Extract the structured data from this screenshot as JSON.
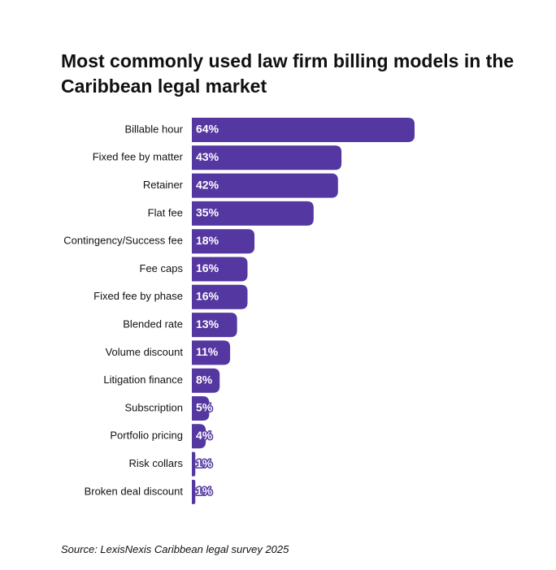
{
  "chart_data": {
    "type": "bar",
    "orientation": "horizontal",
    "title": "Most commonly used law firm billing models in the Caribbean legal market",
    "source": "Source: LexisNexis Caribbean legal survey 2025",
    "categories": [
      "Billable hour",
      "Fixed fee by matter",
      "Retainer",
      "Flat fee",
      "Contingency/Success fee",
      "Fee caps",
      "Fixed fee by phase",
      "Blended rate",
      "Volume discount",
      "Litigation finance",
      "Subscription",
      "Portfolio pricing",
      "Risk collars",
      "Broken deal discount"
    ],
    "values": [
      64,
      43,
      42,
      35,
      18,
      16,
      16,
      13,
      11,
      8,
      5,
      4,
      1,
      1
    ],
    "value_labels": [
      "64%",
      "43%",
      "42%",
      "35%",
      "18%",
      "16%",
      "16%",
      "13%",
      "11%",
      "8%",
      "5%",
      "4%",
      "1%",
      "1%"
    ],
    "color": "#5437a0"
  }
}
